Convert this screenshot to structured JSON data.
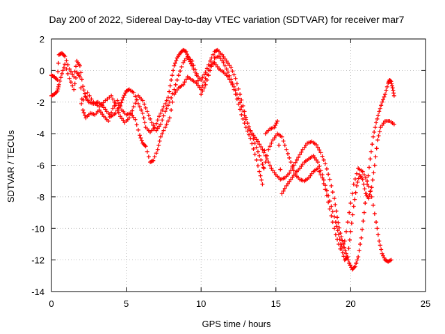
{
  "chart_data": {
    "type": "scatter",
    "title": "Day 200 of 2022, Sidereal Day-to-day VTEC variation (SDTVAR) for receiver mar7",
    "xlabel": "GPS time / hours",
    "ylabel": "SDTVAR / TECUs",
    "xlim": [
      0,
      25
    ],
    "ylim": [
      -14,
      2
    ],
    "xticks": [
      0,
      5,
      10,
      15,
      20,
      25
    ],
    "yticks": [
      2,
      0,
      -2,
      -4,
      -6,
      -8,
      -10,
      -12,
      -14
    ],
    "grid": true,
    "marker": "plus",
    "color": "#ff0000",
    "series": [
      {
        "points": [
          [
            0.0,
            -0.3
          ],
          [
            0.2,
            -0.4
          ],
          [
            0.4,
            -0.6
          ],
          [
            0.5,
            1.0
          ],
          [
            0.7,
            1.1
          ],
          [
            0.9,
            0.9
          ],
          [
            1.2,
            0.1
          ],
          [
            1.5,
            -0.4
          ],
          [
            1.7,
            0.6
          ],
          [
            1.9,
            0.3
          ],
          [
            2.1,
            -1.0
          ],
          [
            2.3,
            -1.7
          ],
          [
            2.5,
            -2.0
          ],
          [
            2.8,
            -2.1
          ],
          [
            3.1,
            -2.0
          ],
          [
            3.4,
            -2.2
          ],
          [
            3.7,
            -2.6
          ],
          [
            4.0,
            -2.9
          ],
          [
            4.3,
            -2.7
          ],
          [
            4.6,
            -2.2
          ],
          [
            4.8,
            -1.7
          ],
          [
            5.0,
            -1.3
          ],
          [
            5.2,
            -1.2
          ],
          [
            5.5,
            -1.4
          ],
          [
            5.8,
            -2.1
          ],
          [
            6.1,
            -2.7
          ],
          [
            6.3,
            -3.6
          ],
          [
            6.6,
            -3.9
          ],
          [
            6.9,
            -3.6
          ],
          [
            7.2,
            -2.9
          ],
          [
            7.5,
            -2.3
          ],
          [
            7.8,
            -1.7
          ],
          [
            8.0,
            -0.6
          ],
          [
            8.2,
            0.3
          ],
          [
            8.4,
            0.8
          ],
          [
            8.6,
            1.1
          ],
          [
            8.8,
            1.3
          ],
          [
            9.0,
            1.2
          ],
          [
            9.2,
            0.7
          ],
          [
            9.4,
            0.3
          ],
          [
            9.7,
            -0.3
          ],
          [
            10.0,
            -0.6
          ],
          [
            10.3,
            -0.1
          ],
          [
            10.6,
            0.6
          ],
          [
            10.9,
            1.2
          ],
          [
            11.1,
            1.3
          ],
          [
            11.4,
            1.0
          ],
          [
            11.7,
            0.6
          ],
          [
            12.0,
            0.2
          ],
          [
            12.3,
            -0.5
          ],
          [
            12.6,
            -1.5
          ],
          [
            12.9,
            -2.6
          ],
          [
            13.2,
            -3.7
          ],
          [
            13.5,
            -4.1
          ],
          [
            13.8,
            -4.5
          ],
          [
            14.1,
            -5.0
          ],
          [
            14.4,
            -5.6
          ],
          [
            14.7,
            -6.2
          ],
          [
            15.0,
            -6.6
          ],
          [
            15.3,
            -6.9
          ],
          [
            15.6,
            -6.8
          ],
          [
            15.9,
            -6.5
          ],
          [
            16.2,
            -6.0
          ],
          [
            16.5,
            -5.5
          ],
          [
            16.8,
            -5.0
          ],
          [
            17.1,
            -4.6
          ],
          [
            17.4,
            -4.5
          ],
          [
            17.7,
            -4.7
          ],
          [
            18.0,
            -5.2
          ],
          [
            18.3,
            -5.9
          ],
          [
            18.6,
            -6.9
          ],
          [
            18.9,
            -8.1
          ],
          [
            19.1,
            -9.3
          ],
          [
            19.3,
            -10.3
          ],
          [
            19.5,
            -11.0
          ],
          [
            19.7,
            -11.6
          ],
          [
            19.9,
            -12.2
          ],
          [
            20.1,
            -12.6
          ],
          [
            20.3,
            -12.4
          ],
          [
            20.5,
            -11.8
          ],
          [
            20.7,
            -10.6
          ],
          [
            20.9,
            -9.0
          ],
          [
            21.1,
            -7.2
          ],
          [
            21.3,
            -5.6
          ],
          [
            21.5,
            -4.2
          ],
          [
            21.7,
            -3.3
          ],
          [
            21.9,
            -2.6
          ],
          [
            22.1,
            -2.0
          ],
          [
            22.3,
            -1.5
          ],
          [
            22.5,
            -0.8
          ],
          [
            22.6,
            -0.6
          ],
          [
            22.7,
            -0.7
          ],
          [
            22.8,
            -1.1
          ],
          [
            22.9,
            -1.6
          ]
        ]
      },
      {
        "points": [
          [
            0.0,
            -1.6
          ],
          [
            0.2,
            -1.5
          ],
          [
            0.4,
            -1.3
          ],
          [
            0.5,
            -0.9
          ],
          [
            0.7,
            -0.2
          ],
          [
            0.9,
            0.4
          ],
          [
            1.2,
            -0.5
          ],
          [
            1.5,
            -1.2
          ],
          [
            1.7,
            -0.1
          ],
          [
            1.9,
            -0.4
          ],
          [
            2.1,
            -2.5
          ],
          [
            2.3,
            -3.0
          ],
          [
            2.6,
            -2.7
          ],
          [
            2.9,
            -2.8
          ],
          [
            3.2,
            -2.5
          ],
          [
            3.5,
            -2.9
          ],
          [
            3.8,
            -3.2
          ],
          [
            4.1,
            -2.4
          ],
          [
            4.4,
            -1.9
          ],
          [
            4.7,
            -2.5
          ],
          [
            5.0,
            -2.8
          ],
          [
            5.3,
            -2.7
          ],
          [
            5.6,
            -3.1
          ],
          [
            5.9,
            -4.1
          ],
          [
            6.1,
            -4.6
          ],
          [
            6.3,
            -4.8
          ],
          [
            6.6,
            -5.8
          ],
          [
            6.8,
            -5.7
          ],
          [
            7.1,
            -5.0
          ],
          [
            7.3,
            -4.2
          ],
          [
            7.6,
            -3.6
          ],
          [
            7.9,
            -3.0
          ],
          [
            8.2,
            -1.5
          ],
          [
            8.5,
            -1.1
          ],
          [
            8.8,
            -0.9
          ],
          [
            9.1,
            -0.4
          ],
          [
            9.4,
            -0.6
          ],
          [
            9.7,
            -0.8
          ],
          [
            10.0,
            -1.2
          ],
          [
            10.3,
            -0.5
          ],
          [
            10.6,
            0.3
          ],
          [
            10.9,
            0.5
          ],
          [
            11.2,
            0.1
          ],
          [
            11.5,
            -0.1
          ],
          [
            11.8,
            -0.4
          ],
          [
            12.1,
            -0.9
          ],
          [
            12.4,
            -1.8
          ],
          [
            12.7,
            -2.8
          ],
          [
            13.0,
            -3.6
          ],
          [
            13.3,
            -4.3
          ],
          [
            13.6,
            -5.3
          ],
          [
            13.9,
            -6.4
          ],
          [
            14.1,
            -7.2
          ],
          [
            14.3,
            -4.0
          ],
          [
            14.6,
            -3.7
          ],
          [
            14.9,
            -3.6
          ],
          [
            15.1,
            -3.2
          ],
          [
            15.4,
            -7.8
          ],
          [
            15.7,
            -7.3
          ],
          [
            16.0,
            -6.9
          ],
          [
            16.3,
            -6.5
          ],
          [
            16.6,
            -6.2
          ],
          [
            16.9,
            -5.8
          ],
          [
            17.2,
            -5.6
          ],
          [
            17.5,
            -5.4
          ],
          [
            17.8,
            -5.8
          ],
          [
            18.1,
            -6.6
          ],
          [
            18.4,
            -7.6
          ],
          [
            18.7,
            -8.6
          ],
          [
            19.0,
            -9.6
          ],
          [
            19.2,
            -10.4
          ],
          [
            19.4,
            -11.3
          ],
          [
            19.6,
            -12.0
          ],
          [
            19.8,
            -11.8
          ],
          [
            20.0,
            -10.2
          ],
          [
            20.2,
            -8.6
          ],
          [
            20.4,
            -7.3
          ],
          [
            20.6,
            -6.6
          ],
          [
            20.8,
            -6.9
          ],
          [
            21.0,
            -7.8
          ],
          [
            21.2,
            -8.1
          ],
          [
            21.4,
            -7.4
          ],
          [
            21.6,
            -6.0
          ],
          [
            21.8,
            -4.4
          ],
          [
            22.0,
            -3.6
          ],
          [
            22.3,
            -3.2
          ],
          [
            22.6,
            -3.2
          ],
          [
            22.9,
            -3.4
          ]
        ]
      },
      {
        "points": [
          [
            2.0,
            -2.1
          ],
          [
            2.4,
            -1.4
          ],
          [
            2.8,
            -2.0
          ],
          [
            3.2,
            -2.3
          ],
          [
            3.6,
            -1.9
          ],
          [
            4.0,
            -1.6
          ],
          [
            4.3,
            -2.2
          ],
          [
            4.6,
            -2.9
          ],
          [
            4.9,
            -3.3
          ],
          [
            5.2,
            -3.0
          ],
          [
            5.5,
            -2.3
          ],
          [
            5.8,
            -1.6
          ],
          [
            6.1,
            -1.9
          ],
          [
            6.4,
            -2.6
          ],
          [
            6.7,
            -3.3
          ],
          [
            7.0,
            -3.8
          ],
          [
            7.3,
            -3.4
          ],
          [
            7.6,
            -2.6
          ],
          [
            7.9,
            -2.0
          ],
          [
            8.2,
            -1.2
          ],
          [
            8.5,
            -0.3
          ],
          [
            8.8,
            0.5
          ],
          [
            9.1,
            0.9
          ],
          [
            9.4,
            0.6
          ],
          [
            9.7,
            -0.2
          ],
          [
            10.0,
            -1.5
          ],
          [
            10.3,
            -0.9
          ],
          [
            10.6,
            0.0
          ],
          [
            10.9,
            0.8
          ],
          [
            11.2,
            0.9
          ],
          [
            11.5,
            0.5
          ],
          [
            11.8,
            -0.1
          ],
          [
            12.1,
            -0.8
          ],
          [
            12.4,
            -1.5
          ],
          [
            12.7,
            -2.3
          ],
          [
            13.0,
            -3.1
          ],
          [
            13.3,
            -3.8
          ],
          [
            13.6,
            -4.6
          ],
          [
            13.9,
            -5.4
          ],
          [
            14.2,
            -6.2
          ],
          [
            14.5,
            -5.0
          ],
          [
            14.8,
            -4.4
          ],
          [
            15.1,
            -4.0
          ],
          [
            15.4,
            -4.2
          ],
          [
            15.7,
            -5.0
          ],
          [
            16.0,
            -5.8
          ],
          [
            16.3,
            -6.6
          ],
          [
            16.6,
            -6.9
          ],
          [
            16.9,
            -7.0
          ],
          [
            17.2,
            -6.8
          ],
          [
            17.5,
            -6.4
          ],
          [
            17.8,
            -6.2
          ],
          [
            18.1,
            -6.8
          ],
          [
            18.4,
            -7.9
          ],
          [
            18.7,
            -9.2
          ],
          [
            19.0,
            -10.4
          ],
          [
            19.3,
            -11.3
          ],
          [
            19.6,
            -10.8
          ],
          [
            19.9,
            -9.0
          ],
          [
            20.2,
            -7.2
          ],
          [
            20.5,
            -6.2
          ],
          [
            20.8,
            -6.4
          ],
          [
            21.1,
            -7.0
          ],
          [
            21.4,
            -8.0
          ],
          [
            21.7,
            -9.6
          ],
          [
            21.9,
            -10.8
          ],
          [
            22.1,
            -11.6
          ],
          [
            22.3,
            -12.0
          ],
          [
            22.5,
            -12.1
          ],
          [
            22.7,
            -12.0
          ]
        ]
      }
    ]
  }
}
